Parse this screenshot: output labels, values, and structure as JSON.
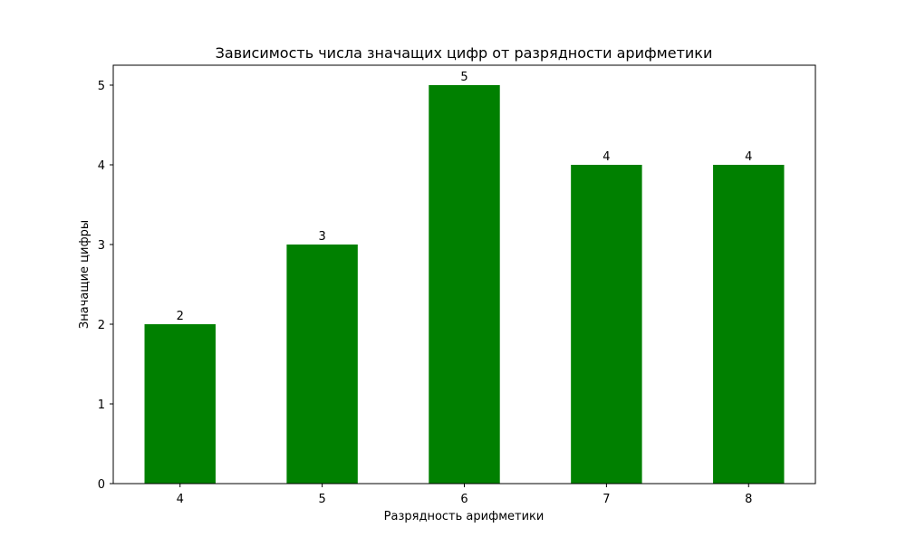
{
  "chart_data": {
    "type": "bar",
    "title": "Зависимость числа значащих цифр от разрядности арифметики",
    "xlabel": "Разрядность арифметики",
    "ylabel": "Значащие цифры",
    "categories": [
      "4",
      "5",
      "6",
      "7",
      "8"
    ],
    "values": [
      2,
      3,
      5,
      4,
      4
    ],
    "data_labels": [
      "2",
      "3",
      "5",
      "4",
      "4"
    ],
    "yticks": [
      "0",
      "1",
      "2",
      "3",
      "4",
      "5"
    ],
    "ylim": [
      0,
      5.25
    ],
    "grid": false,
    "legend": "none",
    "bar_color": "#008000"
  }
}
